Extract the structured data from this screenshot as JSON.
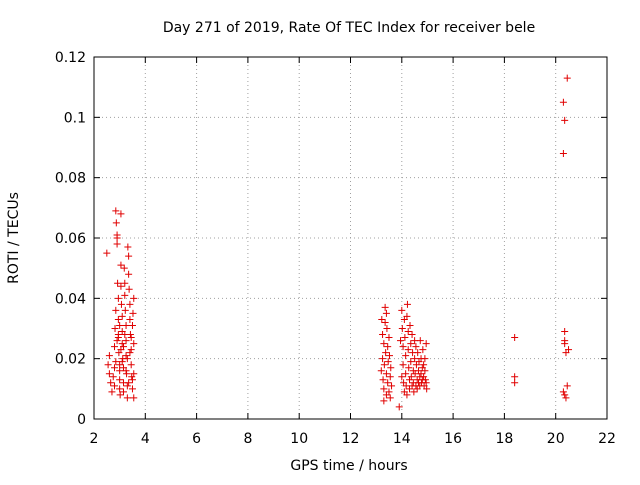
{
  "chart_data": {
    "type": "scatter",
    "title": "Day 271 of 2019, Rate Of TEC Index for receiver bele",
    "xlabel": "GPS time / hours",
    "ylabel": "ROTI / TECUs",
    "xlim": [
      2,
      22
    ],
    "ylim": [
      0,
      0.12
    ],
    "x_ticks": [
      "2",
      "4",
      "6",
      "8",
      "10",
      "12",
      "14",
      "16",
      "18",
      "20",
      "22"
    ],
    "y_ticks": [
      "0",
      "0.02",
      "0.04",
      "0.06",
      "0.08",
      "0.1",
      "0.12"
    ],
    "grid": true,
    "marker": "+",
    "marker_color": "#e00000",
    "series": [
      {
        "points": [
          [
            2.5,
            0.055
          ],
          [
            2.55,
            0.018
          ],
          [
            2.6,
            0.015
          ],
          [
            2.65,
            0.012
          ],
          [
            2.6,
            0.021
          ],
          [
            2.7,
            0.009
          ],
          [
            2.75,
            0.014
          ],
          [
            2.8,
            0.011
          ],
          [
            2.8,
            0.024
          ],
          [
            2.82,
            0.03
          ],
          [
            2.85,
            0.036
          ],
          [
            2.85,
            0.069
          ],
          [
            2.87,
            0.065
          ],
          [
            2.9,
            0.061
          ],
          [
            2.9,
            0.06
          ],
          [
            2.9,
            0.058
          ],
          [
            2.92,
            0.045
          ],
          [
            2.95,
            0.04
          ],
          [
            2.95,
            0.033
          ],
          [
            2.95,
            0.027
          ],
          [
            2.97,
            0.022
          ],
          [
            3.0,
            0.018
          ],
          [
            3.0,
            0.016
          ],
          [
            3.0,
            0.013
          ],
          [
            3.0,
            0.01
          ],
          [
            3.02,
            0.008
          ],
          [
            3.05,
            0.068
          ],
          [
            3.05,
            0.051
          ],
          [
            3.05,
            0.044
          ],
          [
            3.07,
            0.038
          ],
          [
            3.1,
            0.034
          ],
          [
            3.1,
            0.029
          ],
          [
            3.1,
            0.025
          ],
          [
            3.12,
            0.02
          ],
          [
            3.15,
            0.017
          ],
          [
            3.15,
            0.012
          ],
          [
            3.15,
            0.009
          ],
          [
            3.18,
            0.05
          ],
          [
            3.2,
            0.045
          ],
          [
            3.2,
            0.041
          ],
          [
            3.22,
            0.036
          ],
          [
            3.25,
            0.031
          ],
          [
            3.25,
            0.026
          ],
          [
            3.25,
            0.021
          ],
          [
            3.27,
            0.015
          ],
          [
            3.3,
            0.011
          ],
          [
            3.3,
            0.007
          ],
          [
            3.32,
            0.057
          ],
          [
            3.35,
            0.054
          ],
          [
            3.35,
            0.048
          ],
          [
            3.37,
            0.043
          ],
          [
            3.4,
            0.038
          ],
          [
            3.4,
            0.033
          ],
          [
            3.42,
            0.028
          ],
          [
            3.45,
            0.023
          ],
          [
            3.45,
            0.018
          ],
          [
            3.47,
            0.014
          ],
          [
            3.5,
            0.01
          ],
          [
            3.5,
            0.031
          ],
          [
            3.52,
            0.035
          ],
          [
            3.55,
            0.04
          ],
          [
            3.55,
            0.025
          ],
          [
            3.55,
            0.015
          ],
          [
            3.55,
            0.007
          ],
          [
            2.8,
            0.017
          ],
          [
            2.85,
            0.019
          ],
          [
            2.9,
            0.026
          ],
          [
            2.95,
            0.028
          ],
          [
            3.0,
            0.031
          ],
          [
            3.05,
            0.023
          ],
          [
            3.1,
            0.019
          ],
          [
            3.15,
            0.024
          ],
          [
            3.2,
            0.028
          ],
          [
            3.25,
            0.016
          ],
          [
            3.3,
            0.02
          ],
          [
            3.35,
            0.012
          ],
          [
            3.4,
            0.022
          ],
          [
            3.45,
            0.027
          ],
          [
            3.5,
            0.013
          ],
          [
            13.2,
            0.016
          ],
          [
            13.22,
            0.033
          ],
          [
            13.25,
            0.028
          ],
          [
            13.25,
            0.02
          ],
          [
            13.27,
            0.013
          ],
          [
            13.3,
            0.01
          ],
          [
            13.3,
            0.025
          ],
          [
            13.32,
            0.018
          ],
          [
            13.35,
            0.037
          ],
          [
            13.35,
            0.032
          ],
          [
            13.37,
            0.022
          ],
          [
            13.4,
            0.015
          ],
          [
            13.4,
            0.008
          ],
          [
            13.42,
            0.03
          ],
          [
            13.45,
            0.024
          ],
          [
            13.45,
            0.012
          ],
          [
            13.47,
            0.019
          ],
          [
            13.5,
            0.027
          ],
          [
            13.5,
            0.009
          ],
          [
            13.52,
            0.021
          ],
          [
            13.55,
            0.014
          ],
          [
            13.55,
            0.007
          ],
          [
            13.57,
            0.017
          ],
          [
            13.6,
            0.011
          ],
          [
            13.3,
            0.006
          ],
          [
            13.4,
            0.035
          ],
          [
            13.9,
            0.004
          ],
          [
            13.95,
            0.026
          ],
          [
            14.0,
            0.014
          ],
          [
            14.0,
            0.036
          ],
          [
            14.02,
            0.03
          ],
          [
            14.05,
            0.024
          ],
          [
            14.05,
            0.018
          ],
          [
            14.07,
            0.012
          ],
          [
            14.1,
            0.009
          ],
          [
            14.1,
            0.033
          ],
          [
            14.12,
            0.027
          ],
          [
            14.15,
            0.021
          ],
          [
            14.15,
            0.015
          ],
          [
            14.17,
            0.011
          ],
          [
            14.2,
            0.008
          ],
          [
            14.2,
            0.034
          ],
          [
            14.22,
            0.038
          ],
          [
            14.25,
            0.029
          ],
          [
            14.25,
            0.023
          ],
          [
            14.27,
            0.017
          ],
          [
            14.3,
            0.013
          ],
          [
            14.3,
            0.01
          ],
          [
            14.32,
            0.031
          ],
          [
            14.35,
            0.025
          ],
          [
            14.35,
            0.019
          ],
          [
            14.37,
            0.014
          ],
          [
            14.4,
            0.011
          ],
          [
            14.4,
            0.028
          ],
          [
            14.42,
            0.022
          ],
          [
            14.45,
            0.016
          ],
          [
            14.45,
            0.012
          ],
          [
            14.47,
            0.009
          ],
          [
            14.5,
            0.026
          ],
          [
            14.5,
            0.02
          ],
          [
            14.52,
            0.015
          ],
          [
            14.55,
            0.011
          ],
          [
            14.55,
            0.024
          ],
          [
            14.57,
            0.018
          ],
          [
            14.6,
            0.013
          ],
          [
            14.6,
            0.01
          ],
          [
            14.62,
            0.022
          ],
          [
            14.65,
            0.016
          ],
          [
            14.65,
            0.012
          ],
          [
            14.67,
            0.019
          ],
          [
            14.7,
            0.014
          ],
          [
            14.7,
            0.011
          ],
          [
            14.72,
            0.026
          ],
          [
            14.75,
            0.02
          ],
          [
            14.75,
            0.015
          ],
          [
            14.77,
            0.012
          ],
          [
            14.8,
            0.017
          ],
          [
            14.8,
            0.013
          ],
          [
            14.82,
            0.023
          ],
          [
            14.85,
            0.018
          ],
          [
            14.85,
            0.014
          ],
          [
            14.87,
            0.011
          ],
          [
            14.9,
            0.02
          ],
          [
            14.9,
            0.016
          ],
          [
            14.92,
            0.013
          ],
          [
            14.95,
            0.012
          ],
          [
            14.95,
            0.025
          ],
          [
            14.97,
            0.01
          ],
          [
            18.4,
            0.027
          ],
          [
            18.4,
            0.014
          ],
          [
            18.4,
            0.012
          ],
          [
            20.3,
            0.105
          ],
          [
            20.35,
            0.099
          ],
          [
            20.3,
            0.088
          ],
          [
            20.45,
            0.113
          ],
          [
            20.35,
            0.029
          ],
          [
            20.35,
            0.026
          ],
          [
            20.35,
            0.025
          ],
          [
            20.4,
            0.022
          ],
          [
            20.5,
            0.023
          ],
          [
            20.45,
            0.011
          ],
          [
            20.3,
            0.009
          ],
          [
            20.35,
            0.008
          ],
          [
            20.4,
            0.007
          ]
        ]
      }
    ]
  }
}
